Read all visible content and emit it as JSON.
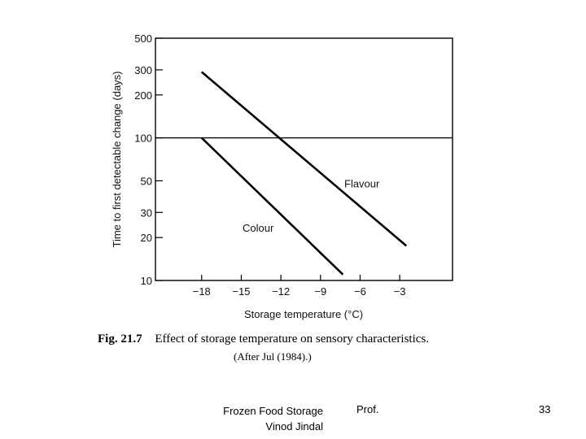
{
  "chart_data": {
    "type": "line",
    "xlabel": "Storage temperature (°C)",
    "ylabel": "Time to first detectable change (days)",
    "x_ticks": [
      -18,
      -15,
      -12,
      -9,
      -6,
      -3
    ],
    "x_tick_labels": [
      "−18",
      "−15",
      "−12",
      "−9",
      "−6",
      "−3"
    ],
    "y_scale": "log",
    "y_ticks": [
      10,
      20,
      30,
      50,
      100,
      200,
      300,
      500
    ],
    "xlim": [
      -21.5,
      1
    ],
    "ylim": [
      10,
      500
    ],
    "reference_line_y": 100,
    "series": [
      {
        "name": "Flavour",
        "x": [
          -18,
          -2.5
        ],
        "y": [
          290,
          17.5
        ]
      },
      {
        "name": "Colour",
        "x": [
          -18,
          -7.3
        ],
        "y": [
          100,
          11
        ]
      }
    ]
  },
  "caption": {
    "figure_number": "Fig. 21.7",
    "text": "Effect of storage temperature on sensory characteristics.",
    "source": "(After Jul (1984).)"
  },
  "footer": {
    "title_line1": "Frozen Food Storage",
    "author_prefix": "Prof.",
    "author_name": "Vinod Jindal",
    "page_number": "33"
  }
}
